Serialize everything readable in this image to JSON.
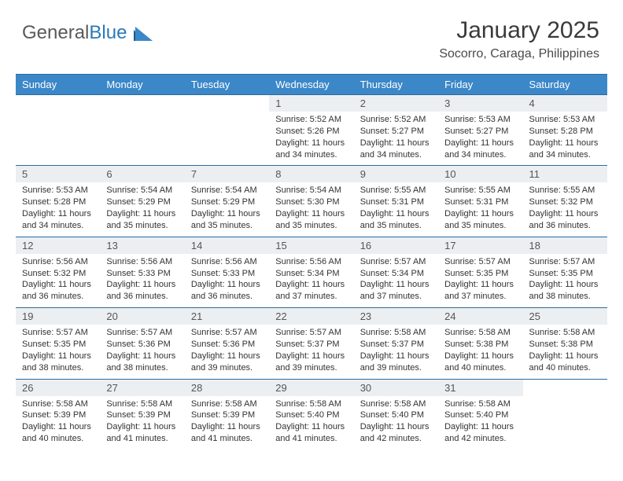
{
  "brand": {
    "part1": "General",
    "part2": "Blue"
  },
  "logo_colors": {
    "text_gray": "#5a5a5a",
    "accent": "#2a7ab9",
    "tri_dark": "#1f5a8a",
    "tri_light": "#3b87c8"
  },
  "header": {
    "title": "January 2025",
    "subtitle": "Socorro, Caraga, Philippines"
  },
  "colors": {
    "header_bg": "#3b87c8",
    "header_text": "#ffffff",
    "daynum_bg": "#eceff1",
    "border": "#2a6aa0",
    "body_text": "#333333",
    "background": "#ffffff"
  },
  "weekdays": [
    "Sunday",
    "Monday",
    "Tuesday",
    "Wednesday",
    "Thursday",
    "Friday",
    "Saturday"
  ],
  "weeks": [
    {
      "days": [
        null,
        null,
        null,
        {
          "n": "1",
          "sr": "5:52 AM",
          "ss": "5:26 PM",
          "dl": "11 hours and 34 minutes."
        },
        {
          "n": "2",
          "sr": "5:52 AM",
          "ss": "5:27 PM",
          "dl": "11 hours and 34 minutes."
        },
        {
          "n": "3",
          "sr": "5:53 AM",
          "ss": "5:27 PM",
          "dl": "11 hours and 34 minutes."
        },
        {
          "n": "4",
          "sr": "5:53 AM",
          "ss": "5:28 PM",
          "dl": "11 hours and 34 minutes."
        }
      ]
    },
    {
      "days": [
        {
          "n": "5",
          "sr": "5:53 AM",
          "ss": "5:28 PM",
          "dl": "11 hours and 34 minutes."
        },
        {
          "n": "6",
          "sr": "5:54 AM",
          "ss": "5:29 PM",
          "dl": "11 hours and 35 minutes."
        },
        {
          "n": "7",
          "sr": "5:54 AM",
          "ss": "5:29 PM",
          "dl": "11 hours and 35 minutes."
        },
        {
          "n": "8",
          "sr": "5:54 AM",
          "ss": "5:30 PM",
          "dl": "11 hours and 35 minutes."
        },
        {
          "n": "9",
          "sr": "5:55 AM",
          "ss": "5:31 PM",
          "dl": "11 hours and 35 minutes."
        },
        {
          "n": "10",
          "sr": "5:55 AM",
          "ss": "5:31 PM",
          "dl": "11 hours and 35 minutes."
        },
        {
          "n": "11",
          "sr": "5:55 AM",
          "ss": "5:32 PM",
          "dl": "11 hours and 36 minutes."
        }
      ]
    },
    {
      "days": [
        {
          "n": "12",
          "sr": "5:56 AM",
          "ss": "5:32 PM",
          "dl": "11 hours and 36 minutes."
        },
        {
          "n": "13",
          "sr": "5:56 AM",
          "ss": "5:33 PM",
          "dl": "11 hours and 36 minutes."
        },
        {
          "n": "14",
          "sr": "5:56 AM",
          "ss": "5:33 PM",
          "dl": "11 hours and 36 minutes."
        },
        {
          "n": "15",
          "sr": "5:56 AM",
          "ss": "5:34 PM",
          "dl": "11 hours and 37 minutes."
        },
        {
          "n": "16",
          "sr": "5:57 AM",
          "ss": "5:34 PM",
          "dl": "11 hours and 37 minutes."
        },
        {
          "n": "17",
          "sr": "5:57 AM",
          "ss": "5:35 PM",
          "dl": "11 hours and 37 minutes."
        },
        {
          "n": "18",
          "sr": "5:57 AM",
          "ss": "5:35 PM",
          "dl": "11 hours and 38 minutes."
        }
      ]
    },
    {
      "days": [
        {
          "n": "19",
          "sr": "5:57 AM",
          "ss": "5:35 PM",
          "dl": "11 hours and 38 minutes."
        },
        {
          "n": "20",
          "sr": "5:57 AM",
          "ss": "5:36 PM",
          "dl": "11 hours and 38 minutes."
        },
        {
          "n": "21",
          "sr": "5:57 AM",
          "ss": "5:36 PM",
          "dl": "11 hours and 39 minutes."
        },
        {
          "n": "22",
          "sr": "5:57 AM",
          "ss": "5:37 PM",
          "dl": "11 hours and 39 minutes."
        },
        {
          "n": "23",
          "sr": "5:58 AM",
          "ss": "5:37 PM",
          "dl": "11 hours and 39 minutes."
        },
        {
          "n": "24",
          "sr": "5:58 AM",
          "ss": "5:38 PM",
          "dl": "11 hours and 40 minutes."
        },
        {
          "n": "25",
          "sr": "5:58 AM",
          "ss": "5:38 PM",
          "dl": "11 hours and 40 minutes."
        }
      ]
    },
    {
      "days": [
        {
          "n": "26",
          "sr": "5:58 AM",
          "ss": "5:39 PM",
          "dl": "11 hours and 40 minutes."
        },
        {
          "n": "27",
          "sr": "5:58 AM",
          "ss": "5:39 PM",
          "dl": "11 hours and 41 minutes."
        },
        {
          "n": "28",
          "sr": "5:58 AM",
          "ss": "5:39 PM",
          "dl": "11 hours and 41 minutes."
        },
        {
          "n": "29",
          "sr": "5:58 AM",
          "ss": "5:40 PM",
          "dl": "11 hours and 41 minutes."
        },
        {
          "n": "30",
          "sr": "5:58 AM",
          "ss": "5:40 PM",
          "dl": "11 hours and 42 minutes."
        },
        {
          "n": "31",
          "sr": "5:58 AM",
          "ss": "5:40 PM",
          "dl": "11 hours and 42 minutes."
        },
        null
      ]
    }
  ],
  "labels": {
    "sunrise": "Sunrise:",
    "sunset": "Sunset:",
    "daylight": "Daylight:"
  }
}
